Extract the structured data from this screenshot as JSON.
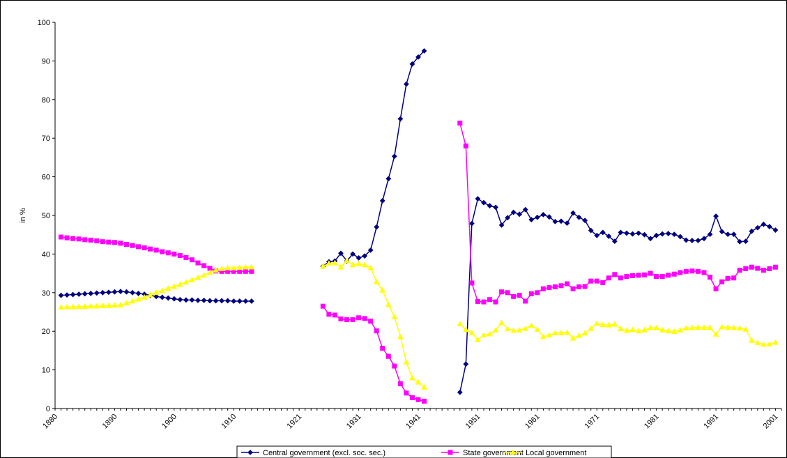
{
  "chart_data": {
    "type": "line",
    "ylabel": "in %",
    "xlabel": "",
    "ylim": [
      0,
      100
    ],
    "yticks": [
      0,
      10,
      20,
      30,
      40,
      50,
      60,
      70,
      80,
      90,
      100
    ],
    "xticks": [
      "1880",
      "1890",
      "1900",
      "1910",
      "1921",
      "1931",
      "1941",
      "1951",
      "1961",
      "1971",
      "1981",
      "1991",
      "2001"
    ],
    "legend_position": "bottom",
    "grid": false,
    "series": [
      {
        "name": "Central government (excl. soc. sec.)",
        "color": "#000080",
        "marker": "diamond",
        "segments": [
          {
            "x": [
              1881,
              1882,
              1883,
              1884,
              1885,
              1886,
              1887,
              1888,
              1889,
              1890,
              1891,
              1892,
              1893,
              1894,
              1895,
              1896,
              1897,
              1898,
              1899,
              1900,
              1901,
              1902,
              1903,
              1904,
              1905,
              1906,
              1907,
              1908,
              1909,
              1910,
              1911,
              1912,
              1913
            ],
            "y": [
              29.3,
              29.4,
              29.5,
              29.6,
              29.7,
              29.8,
              29.9,
              30.0,
              30.1,
              30.2,
              30.3,
              30.2,
              30.0,
              29.8,
              29.6,
              29.3,
              29.0,
              28.8,
              28.6,
              28.4,
              28.2,
              28.1,
              28.1,
              28.0,
              28.0,
              27.9,
              27.9,
              27.9,
              27.9,
              27.8,
              27.8,
              27.8,
              27.8
            ]
          },
          {
            "x": [
              1925,
              1926,
              1927,
              1928,
              1929,
              1930,
              1931,
              1932,
              1933,
              1934,
              1935,
              1936,
              1937,
              1938,
              1939,
              1940,
              1941,
              1942
            ],
            "y": [
              36.8,
              38.0,
              38.2,
              40.2,
              38.2,
              40.0,
              39.0,
              39.5,
              41.0,
              47.0,
              53.8,
              59.5,
              65.3,
              75.0,
              84.0,
              89.2,
              91.0,
              92.6
            ]
          },
          {
            "x": [
              1948,
              1949,
              1950,
              1951,
              1952,
              1953,
              1954,
              1955,
              1956,
              1957,
              1958,
              1959,
              1960,
              1961,
              1962,
              1963,
              1964,
              1965,
              1966,
              1967,
              1968,
              1969,
              1970,
              1971,
              1972,
              1973,
              1974,
              1975,
              1976,
              1977,
              1978,
              1979,
              1980,
              1981,
              1982,
              1983,
              1984,
              1985,
              1986,
              1987,
              1988,
              1989,
              1990,
              1991,
              1992,
              1993,
              1994,
              1995,
              1996,
              1997,
              1998,
              1999,
              2000,
              2001
            ],
            "y": [
              4.2,
              11.5,
              47.9,
              54.3,
              53.3,
              52.5,
              52.1,
              47.5,
              49.4,
              50.8,
              50.3,
              51.5,
              48.9,
              49.5,
              50.2,
              49.6,
              48.4,
              48.5,
              48.0,
              50.6,
              49.5,
              48.7,
              46.1,
              44.8,
              45.6,
              44.6,
              43.3,
              45.6,
              45.4,
              45.2,
              45.4,
              45.0,
              44.0,
              44.8,
              45.2,
              45.3,
              45.1,
              44.5,
              43.6,
              43.5,
              43.5,
              44.0,
              45.1,
              49.8,
              45.8,
              45.1,
              45.1,
              43.2,
              43.3,
              45.9,
              46.8,
              47.7,
              47.1,
              46.2
            ]
          }
        ]
      },
      {
        "name": "State government",
        "color": "#ff00ff",
        "marker": "square",
        "segments": [
          {
            "x": [
              1881,
              1882,
              1883,
              1884,
              1885,
              1886,
              1887,
              1888,
              1889,
              1890,
              1891,
              1892,
              1893,
              1894,
              1895,
              1896,
              1897,
              1898,
              1899,
              1900,
              1901,
              1902,
              1903,
              1904,
              1905,
              1906,
              1907,
              1908,
              1909,
              1910,
              1911,
              1912,
              1913
            ],
            "y": [
              44.4,
              44.2,
              44.0,
              43.9,
              43.7,
              43.6,
              43.4,
              43.2,
              43.1,
              43.0,
              42.8,
              42.5,
              42.2,
              41.9,
              41.6,
              41.3,
              41.0,
              40.6,
              40.3,
              40.0,
              39.6,
              39.1,
              38.5,
              37.7,
              37.0,
              36.3,
              35.6,
              35.5,
              35.5,
              35.5,
              35.5,
              35.5,
              35.5
            ]
          },
          {
            "x": [
              1925,
              1926,
              1927,
              1928,
              1929,
              1930,
              1931,
              1932,
              1933,
              1934,
              1935,
              1936,
              1937,
              1938,
              1939,
              1940,
              1941,
              1942
            ],
            "y": [
              26.5,
              24.4,
              24.2,
              23.2,
              23.0,
              23.0,
              23.5,
              23.3,
              22.6,
              20.1,
              15.6,
              13.5,
              11.0,
              6.4,
              4.0,
              2.8,
              2.3,
              1.9
            ]
          },
          {
            "x": [
              1948,
              1949,
              1950,
              1951,
              1952,
              1953,
              1954,
              1955,
              1956,
              1957,
              1958,
              1959,
              1960,
              1961,
              1962,
              1963,
              1964,
              1965,
              1966,
              1967,
              1968,
              1969,
              1970,
              1971,
              1972,
              1973,
              1974,
              1975,
              1976,
              1977,
              1978,
              1979,
              1980,
              1981,
              1982,
              1983,
              1984,
              1985,
              1986,
              1987,
              1988,
              1989,
              1990,
              1991,
              1992,
              1993,
              1994,
              1995,
              1996,
              1997,
              1998,
              1999,
              2000,
              2001
            ],
            "y": [
              73.9,
              68.0,
              32.5,
              27.7,
              27.6,
              28.2,
              27.6,
              30.2,
              30.0,
              29.0,
              29.3,
              27.8,
              29.7,
              30.0,
              31.0,
              31.3,
              31.5,
              31.8,
              32.3,
              31.0,
              31.5,
              31.6,
              33.0,
              33.0,
              32.6,
              33.8,
              34.7,
              33.8,
              34.2,
              34.4,
              34.5,
              34.6,
              35.0,
              34.2,
              34.2,
              34.5,
              34.8,
              35.2,
              35.5,
              35.6,
              35.5,
              35.2,
              34.0,
              31.0,
              32.8,
              33.7,
              33.8,
              35.8,
              36.2,
              36.6,
              36.3,
              35.8,
              36.2,
              36.6
            ]
          }
        ]
      },
      {
        "name": "Local government",
        "color": "#ffff00",
        "marker": "triangle",
        "segments": [
          {
            "x": [
              1881,
              1882,
              1883,
              1884,
              1885,
              1886,
              1887,
              1888,
              1889,
              1890,
              1891,
              1892,
              1893,
              1894,
              1895,
              1896,
              1897,
              1898,
              1899,
              1900,
              1901,
              1902,
              1903,
              1904,
              1905,
              1906,
              1907,
              1908,
              1909,
              1910,
              1911,
              1912,
              1913
            ],
            "y": [
              26.2,
              26.3,
              26.3,
              26.4,
              26.4,
              26.5,
              26.5,
              26.6,
              26.6,
              26.7,
              26.8,
              27.3,
              27.8,
              28.3,
              28.8,
              29.4,
              30.0,
              30.5,
              31.1,
              31.6,
              32.1,
              32.7,
              33.3,
              33.9,
              34.5,
              35.2,
              35.8,
              36.2,
              36.4,
              36.4,
              36.5,
              36.6,
              36.6
            ]
          },
          {
            "x": [
              1925,
              1926,
              1927,
              1928,
              1929,
              1930,
              1931,
              1932,
              1933,
              1934,
              1935,
              1936,
              1937,
              1938,
              1939,
              1940,
              1941,
              1942
            ],
            "y": [
              36.8,
              37.6,
              37.7,
              36.6,
              38.3,
              37.2,
              37.5,
              37.2,
              36.4,
              32.8,
              30.6,
              26.9,
              23.7,
              18.6,
              12.0,
              7.9,
              6.8,
              5.5
            ]
          },
          {
            "x": [
              1948,
              1949,
              1950,
              1951,
              1952,
              1953,
              1954,
              1955,
              1956,
              1957,
              1958,
              1959,
              1960,
              1961,
              1962,
              1963,
              1964,
              1965,
              1966,
              1967,
              1968,
              1969,
              1970,
              1971,
              1972,
              1973,
              1974,
              1975,
              1976,
              1977,
              1978,
              1979,
              1980,
              1981,
              1982,
              1983,
              1984,
              1985,
              1986,
              1987,
              1988,
              1989,
              1990,
              1991,
              1992,
              1993,
              1994,
              1995,
              1996,
              1997,
              1998,
              1999,
              2000,
              2001
            ],
            "y": [
              21.9,
              20.4,
              19.6,
              17.8,
              19.0,
              19.3,
              20.3,
              22.2,
              20.6,
              20.2,
              20.3,
              20.7,
              21.5,
              20.5,
              18.6,
              19.0,
              19.6,
              19.6,
              19.7,
              18.2,
              18.9,
              19.5,
              20.7,
              22.0,
              21.7,
              21.6,
              21.8,
              20.6,
              20.2,
              20.4,
              20.1,
              20.3,
              20.9,
              20.9,
              20.3,
              20.1,
              19.9,
              20.3,
              20.8,
              20.9,
              21.0,
              21.0,
              20.9,
              19.2,
              21.1,
              21.0,
              20.9,
              20.8,
              20.5,
              17.6,
              17.0,
              16.6,
              16.7,
              17.1
            ]
          }
        ]
      }
    ]
  }
}
